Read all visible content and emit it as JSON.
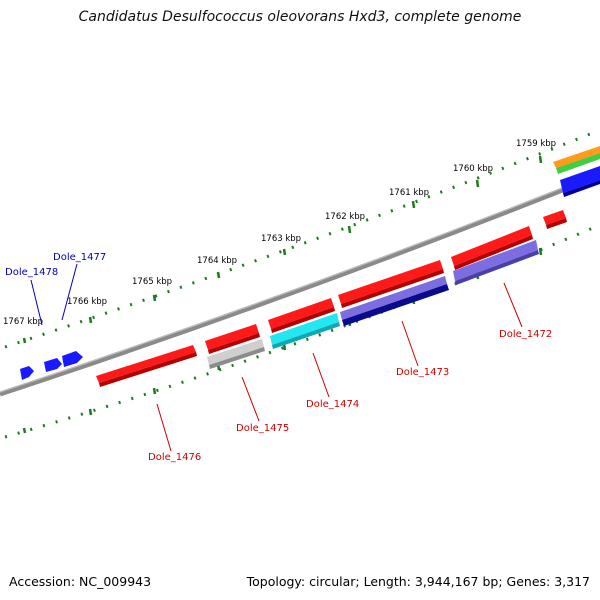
{
  "title": "Candidatus Desulfococcus oleovorans Hxd3, complete genome",
  "footer": {
    "accession": "Accession: NC_009943",
    "summary": "Topology: circular; Length: 3,944,167 bp; Genes: 3,317"
  },
  "colors": {
    "backbone": "#8a8a8a",
    "ticks": "#1f7a1f",
    "red": "#ff1a1a",
    "blue": "#1a1aff",
    "cyan": "#22e6f0",
    "gray": "#b8b8b8",
    "lavender": "#7c6ee0",
    "navy": "#0a0a8c",
    "orange": "#ff9a1a",
    "green": "#44cc44",
    "label_red": "#cc0000",
    "label_blue": "#0000bb"
  },
  "kbp_marks": [
    "1759 kbp",
    "1760 kbp",
    "1761 kbp",
    "1762 kbp",
    "1763 kbp",
    "1764 kbp",
    "1765 kbp",
    "1766 kbp",
    "1767 kbp"
  ],
  "gene_labels": [
    "Dole_1478",
    "Dole_1477",
    "Dole_1476",
    "Dole_1475",
    "Dole_1474",
    "Dole_1473",
    "Dole_1472"
  ]
}
